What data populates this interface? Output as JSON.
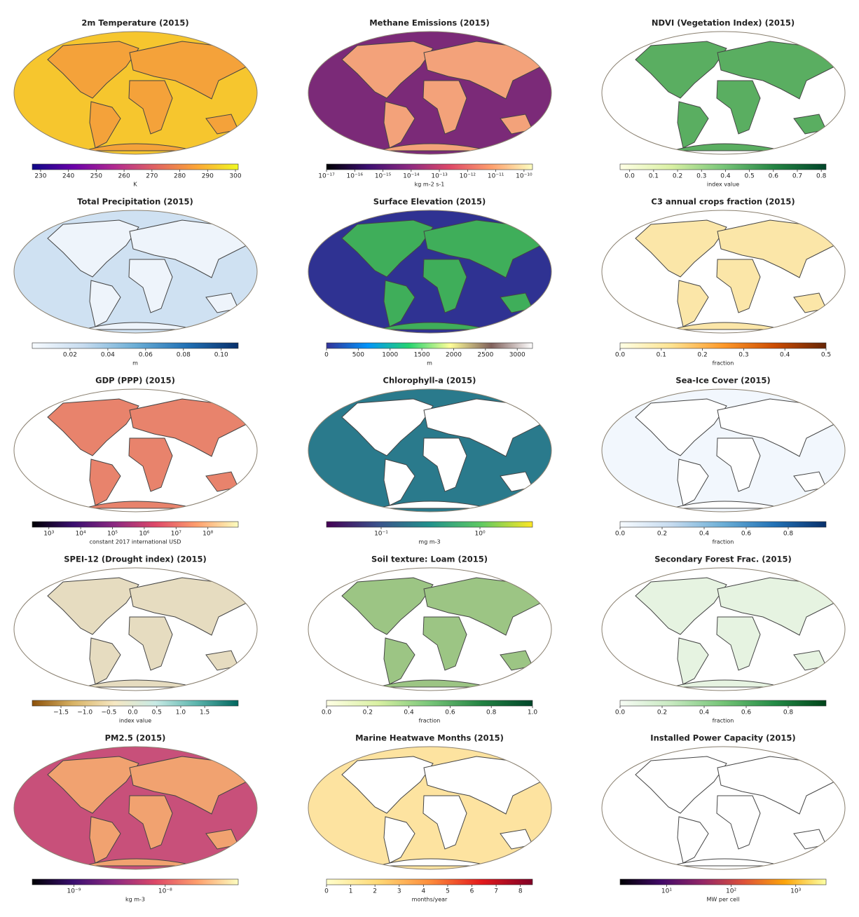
{
  "chart_data": [
    {
      "type": "map",
      "title": "2m Temperature (2015)",
      "colorbar_label": "K",
      "xlim": [
        227,
        301
      ],
      "xticks": [
        230,
        240,
        250,
        260,
        270,
        280,
        290,
        300
      ],
      "log_scale": false,
      "cmap": [
        "#0d0887",
        "#6a00a8",
        "#b12a90",
        "#e16462",
        "#fca636",
        "#f0f921"
      ],
      "ocean_color": "#f6c62e",
      "land_color": "#f4a23a"
    },
    {
      "type": "map",
      "title": "Methane Emissions (2015)",
      "colorbar_label": "kg m-2 s-1",
      "xlim": [
        1e-17,
        2e-10
      ],
      "xticks": [
        {
          "value": 1e-17,
          "label": "10⁻¹⁷"
        },
        {
          "value": 1e-16,
          "label": "10⁻¹⁶"
        },
        {
          "value": 1e-15,
          "label": "10⁻¹⁵"
        },
        {
          "value": 1e-14,
          "label": "10⁻¹⁴"
        },
        {
          "value": 1e-13,
          "label": "10⁻¹³"
        },
        {
          "value": 1e-12,
          "label": "10⁻¹²"
        },
        {
          "value": 1e-11,
          "label": "10⁻¹¹"
        },
        {
          "value": 1e-10,
          "label": "10⁻¹⁰"
        }
      ],
      "log_scale": true,
      "cmap": [
        "#000004",
        "#3b0f70",
        "#8c2981",
        "#de4968",
        "#fe9f6d",
        "#fcfdbf"
      ],
      "ocean_color": "#7b2a78",
      "land_color": "#f3a27a"
    },
    {
      "type": "map",
      "title": "NDVI (Vegetation Index) (2015)",
      "colorbar_label": "index value",
      "xlim": [
        -0.04,
        0.82
      ],
      "xticks": [
        {
          "value": 0,
          "label": "0.0"
        },
        0.1,
        0.2,
        0.3,
        0.4,
        0.5,
        0.6,
        0.7,
        0.8
      ],
      "log_scale": false,
      "cmap": [
        "#ffffe5",
        "#d9f0a3",
        "#78c679",
        "#238443",
        "#004529"
      ],
      "ocean_color": "#ffffff",
      "land_color": "#5aae61"
    },
    {
      "type": "map",
      "title": "Total Precipitation (2015)",
      "colorbar_label": "m",
      "xlim": [
        0,
        0.109
      ],
      "xticks": [
        0.02,
        0.04,
        0.06,
        0.08,
        {
          "value": 0.1,
          "label": "0.10"
        }
      ],
      "log_scale": false,
      "cmap": [
        "#f7fbff",
        "#c6dbef",
        "#6baed6",
        "#2171b5",
        "#08306b"
      ],
      "ocean_color": "#cfe1f2",
      "land_color": "#eef4fb"
    },
    {
      "type": "map",
      "title": "Surface Elevation (2015)",
      "colorbar_label": "m",
      "xlim": [
        0,
        3240
      ],
      "xticks": [
        0,
        500,
        1000,
        1500,
        2000,
        2500,
        3000
      ],
      "log_scale": false,
      "cmap": [
        "#333399",
        "#0294fa",
        "#24d36f",
        "#fefe98",
        "#80605b",
        "#ffffff"
      ],
      "ocean_color": "#2f3292",
      "land_color": "#3fae5a"
    },
    {
      "type": "map",
      "title": "C3 annual crops fraction (2015)",
      "colorbar_label": "fraction",
      "xlim": [
        0,
        0.5
      ],
      "xticks": [
        {
          "value": 0,
          "label": "0.0"
        },
        0.1,
        0.2,
        0.3,
        0.4,
        0.5
      ],
      "log_scale": false,
      "cmap": [
        "#ffffe5",
        "#fee391",
        "#fe9929",
        "#cc4c02",
        "#662506"
      ],
      "ocean_color": "#ffffff",
      "land_color": "#fbe6a8"
    },
    {
      "type": "map",
      "title": "GDP (PPP) (2015)",
      "colorbar_label": "constant 2017 international USD",
      "xlim": [
        300,
        900000000
      ],
      "xticks": [
        {
          "value": 1000,
          "label": "10³"
        },
        {
          "value": 10000,
          "label": "10⁴"
        },
        {
          "value": 100000,
          "label": "10⁵"
        },
        {
          "value": 1000000,
          "label": "10⁶"
        },
        {
          "value": 10000000,
          "label": "10⁷"
        },
        {
          "value": 100000000,
          "label": "10⁸"
        }
      ],
      "log_scale": true,
      "cmap": [
        "#000004",
        "#3b0f70",
        "#8c2981",
        "#de4968",
        "#fe9f6d",
        "#fcfdbf"
      ],
      "ocean_color": "#ffffff",
      "land_color": "#e8836c"
    },
    {
      "type": "map",
      "title": "Chlorophyll-a (2015)",
      "colorbar_label": "mg m-3",
      "xlim": [
        0.028,
        3.4
      ],
      "xticks": [
        {
          "value": 0.1,
          "label": "10⁻¹"
        },
        {
          "value": 1,
          "label": "10⁰"
        }
      ],
      "log_scale": true,
      "cmap": [
        "#440154",
        "#3b528b",
        "#21918c",
        "#5ec962",
        "#fde725"
      ],
      "ocean_color": "#2a7a8c",
      "land_color": "#ffffff"
    },
    {
      "type": "map",
      "title": "Sea-Ice Cover (2015)",
      "colorbar_label": "fraction",
      "xlim": [
        0,
        0.98
      ],
      "xticks": [
        {
          "value": 0,
          "label": "0.0"
        },
        0.2,
        0.4,
        0.6,
        0.8
      ],
      "log_scale": false,
      "cmap": [
        "#f7fbff",
        "#c6dbef",
        "#6baed6",
        "#2171b5",
        "#08306b"
      ],
      "ocean_color": "#f2f7fd",
      "land_color": "#ffffff"
    },
    {
      "type": "map",
      "title": "SPEI-12 (Drought index) (2015)",
      "colorbar_label": "index value",
      "xlim": [
        -2.1,
        2.2
      ],
      "xticks": [
        {
          "value": -1.5,
          "label": "−1.5"
        },
        {
          "value": -1,
          "label": "−1.0"
        },
        {
          "value": -0.5,
          "label": "−0.5"
        },
        {
          "value": 0,
          "label": "0.0"
        },
        0.5,
        {
          "value": 1,
          "label": "1.0"
        },
        1.5
      ],
      "log_scale": false,
      "cmap": [
        "#8c510a",
        "#d8b365",
        "#f6e8c3",
        "#c7eae5",
        "#5ab4ac",
        "#01665e"
      ],
      "ocean_color": "#ffffff",
      "land_color": "#e6dcc0"
    },
    {
      "type": "map",
      "title": "Soil texture: Loam (2015)",
      "colorbar_label": "fraction",
      "xlim": [
        0,
        1
      ],
      "xticks": [
        {
          "value": 0,
          "label": "0.0"
        },
        0.2,
        0.4,
        0.6,
        0.8,
        {
          "value": 1,
          "label": "1.0"
        }
      ],
      "log_scale": false,
      "cmap": [
        "#ffffe5",
        "#d9f0a3",
        "#78c679",
        "#238443",
        "#004529"
      ],
      "ocean_color": "#ffffff",
      "land_color": "#9cc584"
    },
    {
      "type": "map",
      "title": "Secondary Forest Frac. (2015)",
      "colorbar_label": "fraction",
      "xlim": [
        0,
        0.98
      ],
      "xticks": [
        {
          "value": 0,
          "label": "0.0"
        },
        0.2,
        0.4,
        0.6,
        0.8
      ],
      "log_scale": false,
      "cmap": [
        "#f7fcf5",
        "#c7e9c0",
        "#74c476",
        "#238b45",
        "#00441b"
      ],
      "ocean_color": "#ffffff",
      "land_color": "#e6f3e1"
    },
    {
      "type": "map",
      "title": "PM2.5 (2015)",
      "colorbar_label": "kg m-3",
      "xlim": [
        3.5e-10,
        6.3e-08
      ],
      "xticks": [
        {
          "value": 1e-09,
          "label": "10⁻⁹"
        },
        {
          "value": 1e-08,
          "label": "10⁻⁸"
        }
      ],
      "log_scale": true,
      "cmap": [
        "#000004",
        "#3b0f70",
        "#8c2981",
        "#de4968",
        "#fe9f6d",
        "#fcfdbf"
      ],
      "ocean_color": "#c8507a",
      "land_color": "#f1a270"
    },
    {
      "type": "map",
      "title": "Marine Heatwave Months (2015)",
      "colorbar_label": "months/year",
      "xlim": [
        0,
        8.5
      ],
      "xticks": [
        0,
        1,
        2,
        3,
        4,
        5,
        6,
        7,
        8
      ],
      "log_scale": false,
      "cmap": [
        "#ffffcc",
        "#fed976",
        "#fd8d3c",
        "#e31a1c",
        "#800026"
      ],
      "ocean_color": "#fde3a0",
      "land_color": "#ffffff"
    },
    {
      "type": "map",
      "title": "Installed Power Capacity (2015)",
      "colorbar_label": "MW per cell",
      "xlim": [
        1.9,
        2950
      ],
      "xticks": [
        {
          "value": 10,
          "label": "10¹"
        },
        {
          "value": 100,
          "label": "10²"
        },
        {
          "value": 1000,
          "label": "10³"
        }
      ],
      "log_scale": true,
      "cmap": [
        "#000004",
        "#420a68",
        "#932667",
        "#dd513a",
        "#fca50a",
        "#fcffa4"
      ],
      "ocean_color": "#ffffff",
      "land_color": "#ffffff"
    }
  ]
}
